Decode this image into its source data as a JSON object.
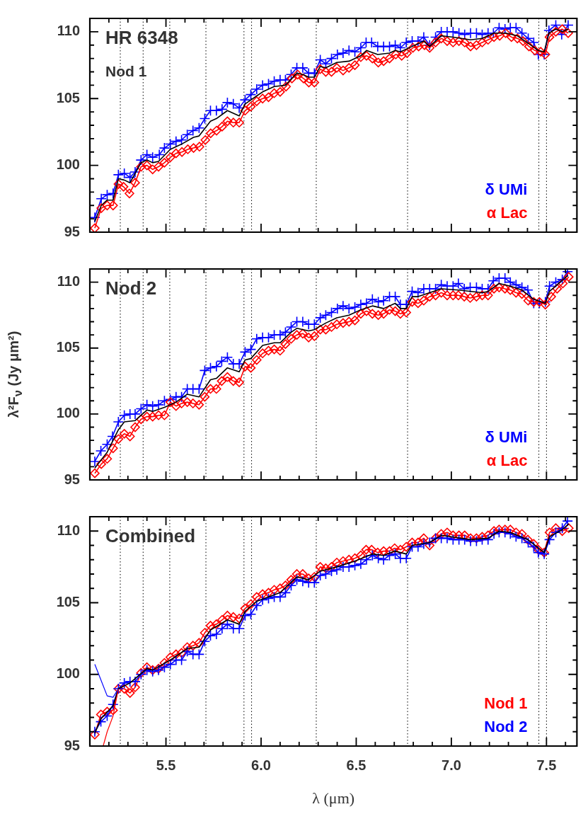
{
  "chart_data": [
    {
      "type": "line",
      "annotations": [
        "HR 6348",
        "Nod 1"
      ],
      "legend": "bottom right",
      "grid": false,
      "tick_labels": "y",
      "xlim": [
        5.1,
        7.66
      ],
      "ylim": [
        95,
        111
      ],
      "xticks": [
        {
          "value": 5.2,
          "label": null
        },
        {
          "value": 5.3,
          "label": null
        },
        {
          "value": 5.4,
          "label": null
        },
        {
          "value": 5.5,
          "label": null
        },
        {
          "value": 5.6,
          "label": null
        },
        {
          "value": 5.7,
          "label": null
        },
        {
          "value": 5.8,
          "label": null
        },
        {
          "value": 5.9,
          "label": null
        },
        {
          "value": 6.0,
          "label": null
        },
        {
          "value": 6.1,
          "label": null
        },
        {
          "value": 6.2,
          "label": null
        },
        {
          "value": 6.3,
          "label": null
        },
        {
          "value": 6.4,
          "label": null
        },
        {
          "value": 6.5,
          "label": null
        },
        {
          "value": 6.6,
          "label": null
        },
        {
          "value": 6.7,
          "label": null
        },
        {
          "value": 6.8,
          "label": null
        },
        {
          "value": 6.9,
          "label": null
        },
        {
          "value": 7.0,
          "label": null
        },
        {
          "value": 7.1,
          "label": null
        },
        {
          "value": 7.2,
          "label": null
        },
        {
          "value": 7.3,
          "label": null
        },
        {
          "value": 7.4,
          "label": null
        },
        {
          "value": 7.5,
          "label": null
        },
        {
          "value": 7.6,
          "label": null
        }
      ],
      "yticks": [
        95,
        {
          "value": 96,
          "label": null
        },
        {
          "value": 97,
          "label": null
        },
        {
          "value": 98,
          "label": null
        },
        {
          "value": 99,
          "label": null
        },
        100,
        {
          "value": 101,
          "label": null
        },
        {
          "value": 102,
          "label": null
        },
        {
          "value": 103,
          "label": null
        },
        {
          "value": 104,
          "label": null
        },
        105,
        {
          "value": 106,
          "label": null
        },
        {
          "value": 107,
          "label": null
        },
        {
          "value": 108,
          "label": null
        },
        {
          "value": 109,
          "label": null
        },
        110,
        {
          "value": 111,
          "label": null
        }
      ],
      "ref_lines": [
        {
          "axis": "x",
          "value": 5.26,
          "color": "#000000",
          "line_style": "dotted"
        },
        {
          "axis": "x",
          "value": 5.38,
          "color": "#000000",
          "line_style": "dotted"
        },
        {
          "axis": "x",
          "value": 5.52,
          "color": "#000000",
          "line_style": "dotted"
        },
        {
          "axis": "x",
          "value": 5.71,
          "color": "#000000",
          "line_style": "dotted"
        },
        {
          "axis": "x",
          "value": 5.91,
          "color": "#000000",
          "line_style": "dotted"
        },
        {
          "axis": "x",
          "value": 5.95,
          "color": "#000000",
          "line_style": "dotted"
        },
        {
          "axis": "x",
          "value": 6.29,
          "color": "#000000",
          "line_style": "dotted"
        },
        {
          "axis": "x",
          "value": 6.77,
          "color": "#000000",
          "line_style": "dotted"
        },
        {
          "axis": "x",
          "value": 7.46,
          "color": "#000000",
          "line_style": "dotted"
        },
        {
          "axis": "x",
          "value": 7.5,
          "color": "#000000",
          "line_style": "dotted"
        }
      ],
      "series": [
        {
          "name": "δ UMi",
          "color": "#0000ff",
          "marker": "cross",
          "x": [
            5.126,
            5.16,
            5.191,
            5.222,
            5.25,
            5.281,
            5.311,
            5.338,
            5.369,
            5.4,
            5.43,
            5.465,
            5.492,
            5.523,
            5.553,
            5.582,
            5.612,
            5.642,
            5.674,
            5.704,
            5.734,
            5.765,
            5.795,
            5.823,
            5.854,
            5.885,
            5.916,
            5.946,
            5.977,
            6.008,
            6.039,
            6.069,
            6.1,
            6.128,
            6.158,
            6.188,
            6.219,
            6.25,
            6.28,
            6.311,
            6.34,
            6.37,
            6.401,
            6.431,
            6.462,
            6.493,
            6.524,
            6.552,
            6.581,
            6.613,
            6.644,
            6.675,
            6.705,
            6.732,
            6.763,
            6.794,
            6.825,
            6.855,
            6.886,
            6.917,
            6.947,
            6.978,
            7.009,
            7.04,
            7.07,
            7.101,
            7.132,
            7.162,
            7.193,
            7.221,
            7.251,
            7.282,
            7.31,
            7.34,
            7.371,
            7.404,
            7.433,
            7.457,
            7.488,
            7.513,
            7.549,
            7.58,
            7.614
          ],
          "values": [
            96.1,
            97.5,
            97.8,
            97.9,
            99.3,
            99.4,
            99.1,
            99.5,
            100.4,
            100.8,
            100.6,
            100.8,
            101.3,
            101.6,
            101.8,
            101.9,
            102.3,
            102.6,
            102.8,
            103.5,
            104.1,
            104.1,
            104.2,
            104.7,
            104.6,
            104.3,
            104.9,
            105.3,
            105.7,
            106.0,
            106.1,
            106.3,
            106.4,
            106.4,
            106.8,
            107.3,
            107.3,
            106.9,
            106.9,
            107.9,
            107.6,
            108.0,
            108.3,
            108.4,
            108.6,
            108.5,
            108.8,
            109.2,
            109.2,
            108.9,
            108.9,
            108.9,
            109.0,
            108.8,
            109.2,
            109.3,
            109.3,
            109.6,
            109.0,
            109.6,
            110.0,
            110.0,
            110.0,
            109.9,
            109.8,
            109.9,
            109.9,
            109.8,
            109.9,
            109.9,
            110.3,
            110.2,
            110.3,
            110.3,
            109.9,
            109.5,
            109.2,
            108.3,
            108.3,
            110.1,
            110.5,
            109.8,
            110.5
          ]
        },
        {
          "name": "α Lac",
          "color": "#ff0000",
          "marker": "diamond",
          "x": [
            5.126,
            5.16,
            5.191,
            5.222,
            5.25,
            5.277,
            5.308,
            5.338,
            5.369,
            5.4,
            5.43,
            5.461,
            5.492,
            5.523,
            5.553,
            5.584,
            5.615,
            5.645,
            5.676,
            5.707,
            5.735,
            5.766,
            5.795,
            5.823,
            5.854,
            5.885,
            5.916,
            5.946,
            5.977,
            6.008,
            6.039,
            6.069,
            6.1,
            6.131,
            6.162,
            6.192,
            6.223,
            6.251,
            6.28,
            6.311,
            6.34,
            6.37,
            6.398,
            6.431,
            6.462,
            6.493,
            6.524,
            6.554,
            6.585,
            6.616,
            6.644,
            6.675,
            6.708,
            6.739,
            6.767,
            6.798,
            6.828,
            6.859,
            6.886,
            6.917,
            6.947,
            6.978,
            7.009,
            7.04,
            7.07,
            7.101,
            7.132,
            7.162,
            7.193,
            7.224,
            7.254,
            7.285,
            7.316,
            7.347,
            7.377,
            7.408,
            7.439,
            7.47,
            7.494,
            7.516,
            7.549,
            7.583,
            7.614
          ],
          "values": [
            95.3,
            96.8,
            97.0,
            97.0,
            98.6,
            98.4,
            97.9,
            98.7,
            99.9,
            100.0,
            99.7,
            99.9,
            100.2,
            100.6,
            100.9,
            101.0,
            101.2,
            101.3,
            101.4,
            101.9,
            102.4,
            102.6,
            102.9,
            103.3,
            103.2,
            103.2,
            104.1,
            104.4,
            104.8,
            105.0,
            105.1,
            105.4,
            105.5,
            105.9,
            106.5,
            106.8,
            106.5,
            106.2,
            106.2,
            107.2,
            107.0,
            107.0,
            107.3,
            107.1,
            107.3,
            107.5,
            108.1,
            108.2,
            108.0,
            107.7,
            107.8,
            108.0,
            108.3,
            108.2,
            108.4,
            108.8,
            108.9,
            109.0,
            108.8,
            109.2,
            109.5,
            109.3,
            109.2,
            109.3,
            109.2,
            108.9,
            109.0,
            109.2,
            109.4,
            109.6,
            109.7,
            109.9,
            109.6,
            109.5,
            109.3,
            108.9,
            108.6,
            108.5,
            108.3,
            109.6,
            110.0,
            110.2,
            109.9
          ]
        },
        {
          "color": "#000000",
          "marker": "none",
          "x": [
            5.126,
            5.16,
            5.191,
            5.222,
            5.25,
            5.281,
            5.311,
            5.369,
            5.4,
            5.43,
            5.461,
            5.523,
            5.584,
            5.645,
            5.674,
            5.734,
            5.765,
            5.823,
            5.885,
            5.916,
            5.977,
            6.008,
            6.069,
            6.128,
            6.188,
            6.219,
            6.25,
            6.28,
            6.311,
            6.34,
            6.398,
            6.462,
            6.524,
            6.554,
            6.613,
            6.675,
            6.705,
            6.732,
            6.794,
            6.855,
            6.886,
            6.947,
            7.009,
            7.101,
            7.162,
            7.224,
            7.285,
            7.347,
            7.408,
            7.457,
            7.488,
            7.513,
            7.549,
            7.583,
            7.614
          ],
          "values": [
            95.8,
            97.0,
            97.4,
            97.4,
            99.0,
            98.9,
            98.7,
            100.2,
            100.4,
            100.2,
            100.3,
            101.2,
            101.6,
            102.1,
            102.2,
            103.3,
            103.5,
            104.1,
            103.7,
            104.6,
            105.2,
            105.5,
            105.9,
            106.0,
            106.9,
            106.8,
            106.6,
            106.6,
            107.4,
            107.3,
            107.7,
            107.8,
            108.2,
            108.6,
            108.3,
            108.4,
            108.6,
            108.5,
            108.9,
            109.3,
            108.9,
            109.7,
            109.6,
            109.4,
            109.5,
            109.9,
            109.9,
            109.7,
            109.1,
            108.6,
            108.5,
            109.9,
            110.2,
            110.0,
            110.2
          ]
        }
      ]
    },
    {
      "type": "line",
      "annotations": [
        "Nod 2"
      ],
      "legend": "bottom right",
      "grid": false,
      "tick_labels": "y",
      "ylabel": "λ²F$_{ν}$ (Jy μm²)",
      "xlim": [
        5.1,
        7.66
      ],
      "ylim": [
        95,
        111
      ],
      "xticks": [
        {
          "value": 5.2,
          "label": null
        },
        {
          "value": 5.3,
          "label": null
        },
        {
          "value": 5.4,
          "label": null
        },
        {
          "value": 5.5,
          "label": null
        },
        {
          "value": 5.6,
          "label": null
        },
        {
          "value": 5.7,
          "label": null
        },
        {
          "value": 5.8,
          "label": null
        },
        {
          "value": 5.9,
          "label": null
        },
        {
          "value": 6.0,
          "label": null
        },
        {
          "value": 6.1,
          "label": null
        },
        {
          "value": 6.2,
          "label": null
        },
        {
          "value": 6.3,
          "label": null
        },
        {
          "value": 6.4,
          "label": null
        },
        {
          "value": 6.5,
          "label": null
        },
        {
          "value": 6.6,
          "label": null
        },
        {
          "value": 6.7,
          "label": null
        },
        {
          "value": 6.8,
          "label": null
        },
        {
          "value": 6.9,
          "label": null
        },
        {
          "value": 7.0,
          "label": null
        },
        {
          "value": 7.1,
          "label": null
        },
        {
          "value": 7.2,
          "label": null
        },
        {
          "value": 7.3,
          "label": null
        },
        {
          "value": 7.4,
          "label": null
        },
        {
          "value": 7.5,
          "label": null
        },
        {
          "value": 7.6,
          "label": null
        }
      ],
      "yticks": [
        95,
        {
          "value": 96,
          "label": null
        },
        {
          "value": 97,
          "label": null
        },
        {
          "value": 98,
          "label": null
        },
        {
          "value": 99,
          "label": null
        },
        100,
        {
          "value": 101,
          "label": null
        },
        {
          "value": 102,
          "label": null
        },
        {
          "value": 103,
          "label": null
        },
        {
          "value": 104,
          "label": null
        },
        105,
        {
          "value": 106,
          "label": null
        },
        {
          "value": 107,
          "label": null
        },
        {
          "value": 108,
          "label": null
        },
        {
          "value": 109,
          "label": null
        },
        110,
        {
          "value": 111,
          "label": null
        }
      ],
      "ref_lines": [
        {
          "axis": "x",
          "value": 5.26,
          "color": "#000000",
          "line_style": "dotted"
        },
        {
          "axis": "x",
          "value": 5.38,
          "color": "#000000",
          "line_style": "dotted"
        },
        {
          "axis": "x",
          "value": 5.52,
          "color": "#000000",
          "line_style": "dotted"
        },
        {
          "axis": "x",
          "value": 5.71,
          "color": "#000000",
          "line_style": "dotted"
        },
        {
          "axis": "x",
          "value": 5.91,
          "color": "#000000",
          "line_style": "dotted"
        },
        {
          "axis": "x",
          "value": 5.95,
          "color": "#000000",
          "line_style": "dotted"
        },
        {
          "axis": "x",
          "value": 6.29,
          "color": "#000000",
          "line_style": "dotted"
        },
        {
          "axis": "x",
          "value": 6.77,
          "color": "#000000",
          "line_style": "dotted"
        },
        {
          "axis": "x",
          "value": 7.46,
          "color": "#000000",
          "line_style": "dotted"
        },
        {
          "axis": "x",
          "value": 7.5,
          "color": "#000000",
          "line_style": "dotted"
        }
      ],
      "series": [
        {
          "name": "δ UMi",
          "color": "#0000ff",
          "marker": "cross",
          "x": [
            5.126,
            5.158,
            5.191,
            5.219,
            5.25,
            5.281,
            5.311,
            5.338,
            5.369,
            5.4,
            5.43,
            5.461,
            5.492,
            5.523,
            5.553,
            5.582,
            5.612,
            5.642,
            5.674,
            5.704,
            5.734,
            5.765,
            5.793,
            5.823,
            5.854,
            5.885,
            5.916,
            5.946,
            5.977,
            6.008,
            6.039,
            6.069,
            6.1,
            6.128,
            6.158,
            6.188,
            6.219,
            6.25,
            6.28,
            6.311,
            6.34,
            6.37,
            6.401,
            6.431,
            6.462,
            6.493,
            6.524,
            6.554,
            6.585,
            6.616,
            6.644,
            6.675,
            6.705,
            6.732,
            6.763,
            6.794,
            6.825,
            6.855,
            6.886,
            6.917,
            6.947,
            6.978,
            7.009,
            7.037,
            7.068,
            7.099,
            7.132,
            7.162,
            7.193,
            7.221,
            7.251,
            7.282,
            7.31,
            7.34,
            7.371,
            7.402,
            7.433,
            7.463,
            7.494,
            7.516,
            7.549,
            7.583,
            7.611
          ],
          "values": [
            96.4,
            97.2,
            97.7,
            98.3,
            99.4,
            99.9,
            100.0,
            100.0,
            100.4,
            100.7,
            100.6,
            100.7,
            101.0,
            101.1,
            101.3,
            101.3,
            101.9,
            101.9,
            101.9,
            103.3,
            103.5,
            103.6,
            104.0,
            104.3,
            103.8,
            103.8,
            104.7,
            104.9,
            105.7,
            105.8,
            105.8,
            106.0,
            106.0,
            106.2,
            106.6,
            107.0,
            107.0,
            106.8,
            106.8,
            107.3,
            107.5,
            107.7,
            108.0,
            108.2,
            108.0,
            108.1,
            108.3,
            108.4,
            108.7,
            108.5,
            108.6,
            108.9,
            108.9,
            108.3,
            108.3,
            109.3,
            109.2,
            109.5,
            109.5,
            109.5,
            109.8,
            109.7,
            109.7,
            109.9,
            109.5,
            109.6,
            109.6,
            109.5,
            109.5,
            110.1,
            110.3,
            110.3,
            110.0,
            109.8,
            109.6,
            109.4,
            108.4,
            108.4,
            108.5,
            109.7,
            110.0,
            110.2,
            110.8
          ]
        },
        {
          "name": "α Lac",
          "color": "#ff0000",
          "marker": "diamond",
          "x": [
            5.126,
            5.16,
            5.191,
            5.222,
            5.25,
            5.281,
            5.311,
            5.338,
            5.369,
            5.4,
            5.43,
            5.461,
            5.492,
            5.523,
            5.553,
            5.582,
            5.612,
            5.642,
            5.674,
            5.704,
            5.734,
            5.765,
            5.793,
            5.823,
            5.854,
            5.885,
            5.916,
            5.946,
            5.977,
            6.008,
            6.039,
            6.069,
            6.1,
            6.128,
            6.158,
            6.188,
            6.219,
            6.25,
            6.28,
            6.311,
            6.34,
            6.37,
            6.398,
            6.431,
            6.462,
            6.493,
            6.524,
            6.554,
            6.585,
            6.616,
            6.644,
            6.675,
            6.705,
            6.732,
            6.763,
            6.794,
            6.825,
            6.855,
            6.886,
            6.917,
            6.947,
            6.978,
            7.009,
            7.037,
            7.068,
            7.099,
            7.132,
            7.162,
            7.193,
            7.224,
            7.251,
            7.282,
            7.31,
            7.34,
            7.371,
            7.404,
            7.433,
            7.463,
            7.494,
            7.525,
            7.556,
            7.586,
            7.617
          ],
          "values": [
            95.5,
            96.2,
            96.6,
            97.4,
            98.1,
            98.5,
            98.3,
            99.0,
            99.6,
            99.8,
            99.8,
            99.9,
            99.9,
            100.9,
            100.6,
            100.8,
            100.9,
            100.8,
            100.7,
            101.3,
            101.9,
            101.9,
            102.5,
            102.8,
            102.5,
            102.4,
            103.6,
            103.5,
            104.1,
            104.6,
            104.8,
            104.9,
            104.8,
            105.3,
            105.7,
            106.0,
            106.1,
            105.8,
            105.9,
            106.4,
            106.4,
            106.6,
            106.8,
            106.9,
            107.0,
            107.1,
            107.6,
            107.8,
            107.6,
            107.5,
            107.6,
            107.9,
            107.8,
            107.6,
            107.7,
            108.5,
            108.4,
            108.6,
            108.9,
            109.0,
            109.2,
            109.0,
            109.0,
            109.0,
            108.9,
            108.8,
            108.9,
            109.0,
            109.0,
            109.5,
            109.6,
            109.5,
            109.4,
            109.2,
            109.1,
            108.6,
            108.5,
            108.5,
            108.3,
            108.9,
            109.5,
            109.9,
            110.4
          ]
        },
        {
          "color": "#000000",
          "marker": "none",
          "x": [
            5.126,
            5.191,
            5.25,
            5.281,
            5.338,
            5.4,
            5.43,
            5.492,
            5.553,
            5.612,
            5.674,
            5.734,
            5.765,
            5.823,
            5.885,
            5.916,
            5.946,
            6.008,
            6.069,
            6.1,
            6.158,
            6.188,
            6.25,
            6.28,
            6.34,
            6.398,
            6.462,
            6.524,
            6.585,
            6.644,
            6.705,
            6.732,
            6.763,
            6.794,
            6.825,
            6.947,
            7.037,
            7.162,
            7.193,
            7.251,
            7.31,
            7.371,
            7.433,
            7.494,
            7.516,
            7.556,
            7.611
          ],
          "values": [
            95.9,
            97.1,
            98.8,
            99.4,
            99.5,
            100.3,
            100.2,
            100.5,
            100.9,
            101.5,
            101.3,
            102.6,
            102.7,
            103.5,
            103.2,
            104.1,
            104.2,
            105.2,
            105.4,
            105.4,
            106.2,
            106.5,
            106.3,
            106.4,
            106.9,
            107.3,
            107.5,
            107.9,
            108.2,
            108.0,
            108.4,
            108.0,
            108.0,
            108.9,
            108.9,
            109.5,
            109.4,
            109.2,
            109.3,
            109.9,
            109.7,
            109.4,
            108.7,
            108.4,
            109.3,
            109.8,
            110.5
          ]
        }
      ]
    },
    {
      "type": "line",
      "annotations": [
        "Combined"
      ],
      "legend": "bottom right",
      "grid": false,
      "xlabel": "λ (μm)",
      "xlim": [
        5.1,
        7.66
      ],
      "ylim": [
        95,
        111
      ],
      "xticks": [
        {
          "value": 5.2,
          "label": null
        },
        {
          "value": 5.3,
          "label": null
        },
        {
          "value": 5.4,
          "label": null
        },
        {
          "value": 5.5,
          "label": "5.5"
        },
        {
          "value": 5.6,
          "label": null
        },
        {
          "value": 5.7,
          "label": null
        },
        {
          "value": 5.8,
          "label": null
        },
        {
          "value": 5.9,
          "label": null
        },
        {
          "value": 6.0,
          "label": "6.0"
        },
        {
          "value": 6.1,
          "label": null
        },
        {
          "value": 6.2,
          "label": null
        },
        {
          "value": 6.3,
          "label": null
        },
        {
          "value": 6.4,
          "label": null
        },
        {
          "value": 6.5,
          "label": "6.5"
        },
        {
          "value": 6.6,
          "label": null
        },
        {
          "value": 6.7,
          "label": null
        },
        {
          "value": 6.8,
          "label": null
        },
        {
          "value": 6.9,
          "label": null
        },
        {
          "value": 7.0,
          "label": "7.0"
        },
        {
          "value": 7.1,
          "label": null
        },
        {
          "value": 7.2,
          "label": null
        },
        {
          "value": 7.3,
          "label": null
        },
        {
          "value": 7.4,
          "label": null
        },
        {
          "value": 7.5,
          "label": "7.5"
        },
        {
          "value": 7.6,
          "label": null
        }
      ],
      "yticks": [
        95,
        {
          "value": 96,
          "label": null
        },
        {
          "value": 97,
          "label": null
        },
        {
          "value": 98,
          "label": null
        },
        {
          "value": 99,
          "label": null
        },
        100,
        {
          "value": 101,
          "label": null
        },
        {
          "value": 102,
          "label": null
        },
        {
          "value": 103,
          "label": null
        },
        {
          "value": 104,
          "label": null
        },
        105,
        {
          "value": 106,
          "label": null
        },
        {
          "value": 107,
          "label": null
        },
        {
          "value": 108,
          "label": null
        },
        {
          "value": 109,
          "label": null
        },
        110,
        {
          "value": 111,
          "label": null
        }
      ],
      "ref_lines": [
        {
          "axis": "x",
          "value": 5.26,
          "color": "#000000",
          "line_style": "dotted"
        },
        {
          "axis": "x",
          "value": 5.38,
          "color": "#000000",
          "line_style": "dotted"
        },
        {
          "axis": "x",
          "value": 5.52,
          "color": "#000000",
          "line_style": "dotted"
        },
        {
          "axis": "x",
          "value": 5.71,
          "color": "#000000",
          "line_style": "dotted"
        },
        {
          "axis": "x",
          "value": 5.91,
          "color": "#000000",
          "line_style": "dotted"
        },
        {
          "axis": "x",
          "value": 5.95,
          "color": "#000000",
          "line_style": "dotted"
        },
        {
          "axis": "x",
          "value": 6.29,
          "color": "#000000",
          "line_style": "dotted"
        },
        {
          "axis": "x",
          "value": 6.77,
          "color": "#000000",
          "line_style": "dotted"
        },
        {
          "axis": "x",
          "value": 7.46,
          "color": "#000000",
          "line_style": "dotted"
        },
        {
          "axis": "x",
          "value": 7.5,
          "color": "#000000",
          "line_style": "dotted"
        }
      ],
      "series": [
        {
          "name": "Nod 1",
          "color": "#ff0000",
          "marker": "diamond",
          "x": [
            5.126,
            5.158,
            5.191,
            5.222,
            5.25,
            5.281,
            5.311,
            5.338,
            5.369,
            5.4,
            5.43,
            5.461,
            5.492,
            5.523,
            5.553,
            5.582,
            5.612,
            5.642,
            5.674,
            5.704,
            5.734,
            5.765,
            5.795,
            5.823,
            5.854,
            5.885,
            5.916,
            5.946,
            5.977,
            6.008,
            6.039,
            6.069,
            6.1,
            6.128,
            6.158,
            6.188,
            6.219,
            6.25,
            6.28,
            6.311,
            6.34,
            6.37,
            6.398,
            6.431,
            6.462,
            6.493,
            6.524,
            6.552,
            6.581,
            6.613,
            6.644,
            6.675,
            6.702,
            6.732,
            6.763,
            6.794,
            6.825,
            6.855,
            6.886,
            6.917,
            6.947,
            6.978,
            7.009,
            7.04,
            7.07,
            7.101,
            7.132,
            7.162,
            7.193,
            7.224,
            7.251,
            7.282,
            7.31,
            7.34,
            7.371,
            7.402,
            7.433,
            7.457,
            7.488,
            7.516,
            7.549,
            7.583,
            7.617
          ],
          "values": [
            95.8,
            97.2,
            97.4,
            97.5,
            99.0,
            99.0,
            98.7,
            99.1,
            100.1,
            100.5,
            100.3,
            100.4,
            100.8,
            101.2,
            101.4,
            101.5,
            101.9,
            102.0,
            102.2,
            102.9,
            103.4,
            103.5,
            103.8,
            104.1,
            104.0,
            103.9,
            104.6,
            104.9,
            105.4,
            105.6,
            105.7,
            105.9,
            106.0,
            106.2,
            106.6,
            107.0,
            107.0,
            106.7,
            106.8,
            107.5,
            107.4,
            107.5,
            107.8,
            107.9,
            108.0,
            108.1,
            108.3,
            108.7,
            108.7,
            108.5,
            108.6,
            108.6,
            108.8,
            108.7,
            108.9,
            109.2,
            109.2,
            109.5,
            109.0,
            109.5,
            109.8,
            109.9,
            109.7,
            109.7,
            109.7,
            109.5,
            109.5,
            109.6,
            109.7,
            110.0,
            110.1,
            110.1,
            110.1,
            109.9,
            109.8,
            109.4,
            109.1,
            108.7,
            108.5,
            109.9,
            110.2,
            110.0,
            110.2
          ]
        },
        {
          "name": "Nod 2",
          "color": "#0000ff",
          "marker": "cross",
          "x": [
            5.126,
            5.158,
            5.191,
            5.222,
            5.25,
            5.281,
            5.311,
            5.338,
            5.369,
            5.4,
            5.43,
            5.461,
            5.492,
            5.523,
            5.553,
            5.582,
            5.612,
            5.642,
            5.674,
            5.704,
            5.734,
            5.765,
            5.795,
            5.823,
            5.854,
            5.885,
            5.916,
            5.946,
            5.977,
            6.008,
            6.039,
            6.069,
            6.1,
            6.128,
            6.158,
            6.188,
            6.219,
            6.25,
            6.28,
            6.311,
            6.34,
            6.37,
            6.398,
            6.431,
            6.462,
            6.493,
            6.524,
            6.554,
            6.585,
            6.616,
            6.644,
            6.675,
            6.705,
            6.732,
            6.763,
            6.794,
            6.825,
            6.855,
            6.886,
            6.917,
            6.947,
            6.978,
            7.009,
            7.04,
            7.07,
            7.101,
            7.132,
            7.162,
            7.193,
            7.224,
            7.251,
            7.282,
            7.31,
            7.34,
            7.371,
            7.404,
            7.433,
            7.457,
            7.488,
            7.516,
            7.549,
            7.583,
            7.611
          ],
          "values": [
            96.0,
            96.7,
            97.1,
            97.9,
            99.0,
            99.4,
            99.5,
            99.5,
            100.0,
            100.3,
            100.2,
            100.3,
            100.5,
            100.7,
            101.0,
            101.0,
            101.6,
            101.4,
            101.4,
            102.3,
            102.7,
            102.8,
            103.2,
            103.5,
            103.2,
            103.2,
            104.1,
            104.2,
            104.8,
            105.2,
            105.3,
            105.4,
            105.4,
            105.7,
            106.2,
            106.6,
            106.5,
            106.4,
            106.4,
            106.9,
            107.0,
            107.2,
            107.3,
            107.5,
            107.5,
            107.6,
            107.7,
            108.0,
            108.3,
            108.1,
            108.0,
            108.3,
            108.4,
            108.1,
            108.1,
            108.9,
            108.9,
            109.1,
            109.2,
            109.5,
            109.5,
            109.5,
            109.4,
            109.4,
            109.4,
            109.3,
            109.3,
            109.4,
            109.4,
            109.8,
            109.9,
            109.9,
            109.8,
            109.6,
            109.5,
            109.2,
            108.9,
            108.5,
            108.4,
            109.4,
            109.9,
            110.2,
            110.7
          ]
        },
        {
          "color": "#000000",
          "marker": "none",
          "x": [
            5.126,
            5.158,
            5.222,
            5.25,
            5.311,
            5.4,
            5.43,
            5.523,
            5.612,
            5.674,
            5.734,
            5.823,
            5.885,
            5.916,
            5.977,
            6.1,
            6.188,
            6.25,
            6.311,
            6.398,
            6.493,
            6.585,
            6.644,
            6.702,
            6.763,
            6.794,
            6.886,
            6.947,
            7.101,
            7.193,
            7.251,
            7.31,
            7.402,
            7.488,
            7.516,
            7.583,
            7.617
          ],
          "values": [
            95.9,
            96.9,
            97.8,
            99.0,
            99.4,
            100.4,
            100.3,
            101.0,
            101.8,
            101.9,
            103.1,
            103.8,
            103.5,
            104.4,
            105.1,
            105.7,
            106.8,
            106.6,
            107.2,
            107.5,
            107.9,
            108.4,
            108.3,
            108.6,
            108.4,
            109.0,
            109.2,
            109.7,
            109.4,
            109.5,
            110.0,
            109.9,
            109.4,
            108.5,
            109.6,
            110.1,
            110.5
          ]
        },
        {
          "color": "#0000ff",
          "marker": "none",
          "x": [
            5.126,
            5.191,
            5.222,
            5.25
          ],
          "values": [
            100.7,
            98.5,
            98.4,
            99.0
          ]
        },
        {
          "color": "#ff0000",
          "marker": "none",
          "x": [
            5.17,
            5.191,
            5.222,
            5.25
          ],
          "values": [
            95.0,
            96.0,
            97.1,
            99.0
          ]
        }
      ]
    }
  ]
}
